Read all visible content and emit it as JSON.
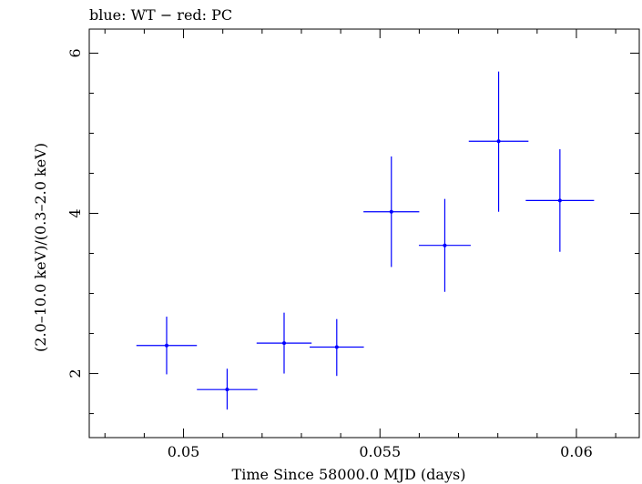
{
  "chart_data": {
    "type": "scatter",
    "title": "blue: WT − red: PC",
    "xlabel": "Time Since 58000.0 MJD (days)",
    "ylabel": "(2.0–10.0 keV)/(0.3–2.0 keV)",
    "xlim": [
      0.0476,
      0.0616
    ],
    "ylim": [
      1.2,
      6.3
    ],
    "xticks": [
      {
        "value": 0.05,
        "label": "0.05"
      },
      {
        "value": 0.055,
        "label": "0.055"
      },
      {
        "value": 0.06,
        "label": "0.06"
      }
    ],
    "yticks": [
      {
        "value": 2,
        "label": "2"
      },
      {
        "value": 4,
        "label": "4"
      },
      {
        "value": 6,
        "label": "6"
      }
    ],
    "series": [
      {
        "color": "#0000ff",
        "points": [
          {
            "x": 0.04957,
            "xerr": 0.00077,
            "y": 2.35,
            "ylo": 1.99,
            "yhi": 2.71
          },
          {
            "x": 0.05111,
            "xerr": 0.00077,
            "y": 1.8,
            "ylo": 1.55,
            "yhi": 2.06
          },
          {
            "x": 0.05256,
            "xerr": 0.0007,
            "y": 2.38,
            "ylo": 2.0,
            "yhi": 2.76
          },
          {
            "x": 0.0539,
            "xerr": 0.00069,
            "y": 2.33,
            "ylo": 1.97,
            "yhi": 2.68
          },
          {
            "x": 0.05529,
            "xerr": 0.00071,
            "y": 4.02,
            "ylo": 3.33,
            "yhi": 4.71
          },
          {
            "x": 0.05665,
            "xerr": 0.00066,
            "y": 3.6,
            "ylo": 3.02,
            "yhi": 4.18
          },
          {
            "x": 0.05802,
            "xerr": 0.00076,
            "y": 4.9,
            "ylo": 4.02,
            "yhi": 5.77
          },
          {
            "x": 0.05958,
            "xerr": 0.00087,
            "y": 4.16,
            "ylo": 3.52,
            "yhi": 4.8
          }
        ]
      }
    ]
  }
}
